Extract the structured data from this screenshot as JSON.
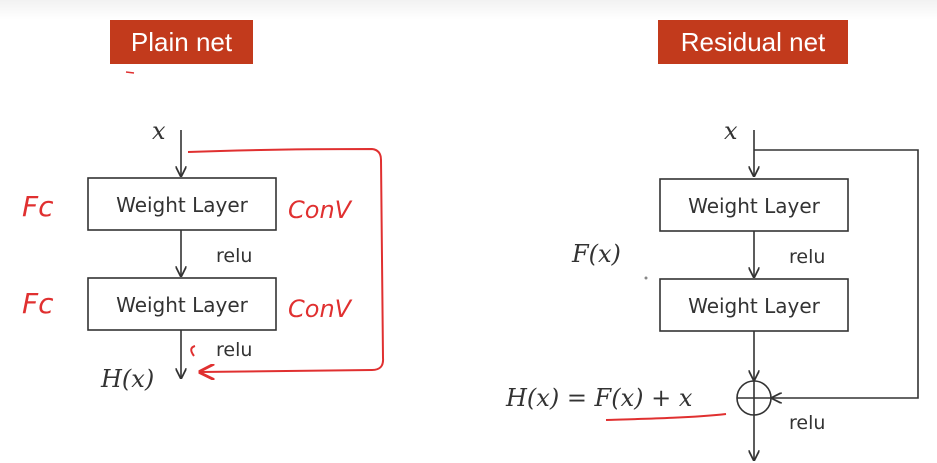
{
  "plain": {
    "title": "Plain net",
    "input": "x",
    "layer1": "Weight Layer",
    "relu1": "relu",
    "layer2": "Weight Layer",
    "relu2": "relu",
    "output": "H(x)",
    "annot_left1": "Fc",
    "annot_left2": "Fc",
    "annot_right1": "ConV",
    "annot_right2": "ConV"
  },
  "residual": {
    "title": "Residual net",
    "input": "x",
    "layer1": "Weight Layer",
    "fx": "F(x)",
    "relu1": "relu",
    "layer2": "Weight Layer",
    "equation": "H(x) = F(x) + x",
    "relu2": "relu"
  },
  "colors": {
    "title_bg": "#c23a1c",
    "annotation": "#e03030",
    "line": "#333333"
  }
}
